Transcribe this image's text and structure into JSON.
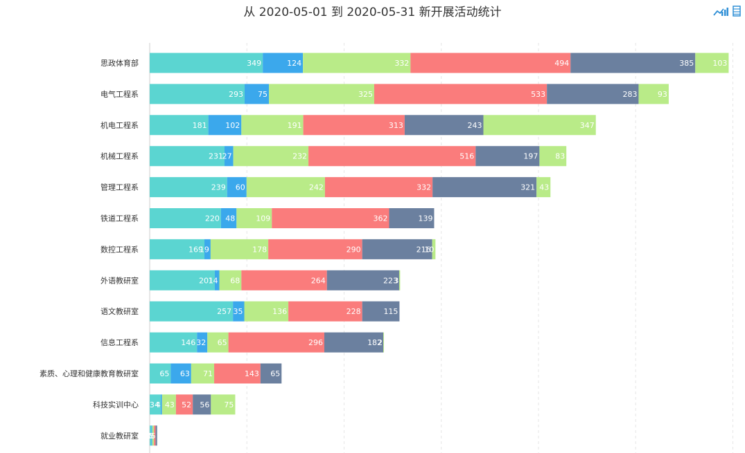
{
  "title": "从 2020-05-01 到 2020-05-31 新开展活动统计",
  "toolbox": {
    "icons": [
      "line-chart-icon",
      "data-view-icon"
    ],
    "color": "#2f8fd6"
  },
  "chart_data": {
    "type": "bar",
    "orientation": "horizontal",
    "stacked": true,
    "categories": [
      "思政体育部",
      "电气工程系",
      "机电工程系",
      "机械工程系",
      "管理工程系",
      "铁道工程系",
      "数控工程系",
      "外语教研室",
      "语文教研室",
      "信息工程系",
      "素质、心理和健康教育教研室",
      "科技实训中心",
      "就业教研室"
    ],
    "series": [
      {
        "color": "#5bd5d1",
        "values": [
          349,
          293,
          181,
          231,
          239,
          220,
          169,
          201,
          257,
          146,
          65,
          34,
          5
        ]
      },
      {
        "color": "#3ba8ec",
        "values": [
          124,
          75,
          102,
          27,
          60,
          48,
          19,
          14,
          35,
          32,
          63,
          4,
          3
        ]
      },
      {
        "color": "#b9eb88",
        "values": [
          332,
          325,
          191,
          232,
          242,
          109,
          178,
          68,
          136,
          65,
          71,
          43,
          5
        ]
      },
      {
        "color": "#fa7c7c",
        "values": [
          494,
          533,
          313,
          516,
          332,
          362,
          290,
          264,
          228,
          296,
          143,
          52,
          5
        ]
      },
      {
        "color": "#6b809f",
        "values": [
          385,
          283,
          243,
          197,
          321,
          139,
          216,
          223,
          115,
          182,
          65,
          56,
          5
        ]
      },
      {
        "color": "#b9eb88",
        "values": [
          103,
          93,
          347,
          83,
          43,
          0,
          10,
          3,
          0,
          2,
          0,
          75,
          0
        ]
      }
    ],
    "xlim": [
      0,
      1800
    ],
    "grid": true,
    "legend": "none",
    "title": "从 2020-05-01 到 2020-05-31 新开展活动统计"
  }
}
